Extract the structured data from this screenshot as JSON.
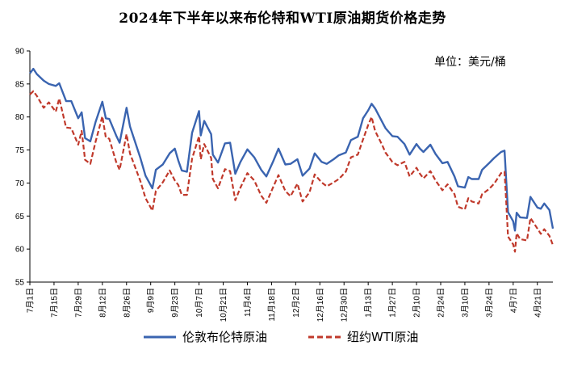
{
  "chart_data": {
    "type": "line",
    "title": "2024年下半年以来布伦特和WTI原油期货价格走势",
    "unit_note": "单位：美元/桶",
    "ylim": [
      55,
      90
    ],
    "y_ticks": [
      "55",
      "60",
      "65",
      "70",
      "75",
      "80",
      "85",
      "90"
    ],
    "x_tick_labels": [
      "7月1日",
      "7月15日",
      "7月29日",
      "8月12日",
      "8月26日",
      "9月9日",
      "9月23日",
      "10月7日",
      "10月21日",
      "11月4日",
      "11月18日",
      "12月2日",
      "12月16日",
      "12月30日",
      "1月13日",
      "1月27日",
      "2月10日",
      "2月24日",
      "3月10日",
      "3月24日",
      "4月7日",
      "4月21日"
    ],
    "x_range": [
      "2024-07-01",
      "2025-04-30"
    ],
    "grid": false,
    "legend_position": "bottom",
    "series": [
      {
        "name": "伦敦布伦特原油",
        "color": "#3a64b0",
        "style": "solid",
        "points": [
          [
            "2024-07-01",
            86.6
          ],
          [
            "2024-07-03",
            87.3
          ],
          [
            "2024-07-05",
            86.5
          ],
          [
            "2024-07-09",
            85.5
          ],
          [
            "2024-07-12",
            85.0
          ],
          [
            "2024-07-16",
            84.7
          ],
          [
            "2024-07-18",
            85.1
          ],
          [
            "2024-07-22",
            82.4
          ],
          [
            "2024-07-25",
            82.4
          ],
          [
            "2024-07-29",
            79.8
          ],
          [
            "2024-07-31",
            80.7
          ],
          [
            "2024-08-02",
            76.8
          ],
          [
            "2024-08-05",
            76.3
          ],
          [
            "2024-08-08",
            79.2
          ],
          [
            "2024-08-12",
            82.3
          ],
          [
            "2024-08-14",
            79.8
          ],
          [
            "2024-08-16",
            79.7
          ],
          [
            "2024-08-20",
            77.2
          ],
          [
            "2024-08-22",
            76.1
          ],
          [
            "2024-08-26",
            81.4
          ],
          [
            "2024-08-28",
            78.6
          ],
          [
            "2024-09-03",
            73.8
          ],
          [
            "2024-09-06",
            71.1
          ],
          [
            "2024-09-10",
            69.2
          ],
          [
            "2024-09-12",
            72.0
          ],
          [
            "2024-09-16",
            72.8
          ],
          [
            "2024-09-20",
            74.5
          ],
          [
            "2024-09-23",
            75.2
          ],
          [
            "2024-09-25",
            73.4
          ],
          [
            "2024-09-27",
            71.9
          ],
          [
            "2024-09-30",
            71.7
          ],
          [
            "2024-10-03",
            77.6
          ],
          [
            "2024-10-07",
            80.9
          ],
          [
            "2024-10-08",
            77.2
          ],
          [
            "2024-10-10",
            79.4
          ],
          [
            "2024-10-14",
            77.4
          ],
          [
            "2024-10-15",
            74.3
          ],
          [
            "2024-10-18",
            73.1
          ],
          [
            "2024-10-22",
            76.0
          ],
          [
            "2024-10-25",
            76.1
          ],
          [
            "2024-10-28",
            71.4
          ],
          [
            "2024-10-31",
            73.2
          ],
          [
            "2024-11-04",
            75.1
          ],
          [
            "2024-11-08",
            73.9
          ],
          [
            "2024-11-12",
            72.0
          ],
          [
            "2024-11-15",
            71.0
          ],
          [
            "2024-11-19",
            73.3
          ],
          [
            "2024-11-22",
            75.2
          ],
          [
            "2024-11-26",
            72.8
          ],
          [
            "2024-11-29",
            72.9
          ],
          [
            "2024-12-03",
            73.6
          ],
          [
            "2024-12-06",
            71.1
          ],
          [
            "2024-12-10",
            72.2
          ],
          [
            "2024-12-13",
            74.5
          ],
          [
            "2024-12-17",
            73.2
          ],
          [
            "2024-12-20",
            72.9
          ],
          [
            "2024-12-24",
            73.6
          ],
          [
            "2024-12-27",
            74.2
          ],
          [
            "2024-12-31",
            74.6
          ],
          [
            "2025-01-03",
            76.5
          ],
          [
            "2025-01-07",
            77.0
          ],
          [
            "2025-01-10",
            79.8
          ],
          [
            "2025-01-13",
            81.0
          ],
          [
            "2025-01-15",
            82.0
          ],
          [
            "2025-01-17",
            81.3
          ],
          [
            "2025-01-21",
            79.3
          ],
          [
            "2025-01-23",
            78.3
          ],
          [
            "2025-01-27",
            77.1
          ],
          [
            "2025-01-30",
            77.0
          ],
          [
            "2025-02-03",
            75.9
          ],
          [
            "2025-02-06",
            74.3
          ],
          [
            "2025-02-10",
            75.9
          ],
          [
            "2025-02-12",
            75.2
          ],
          [
            "2025-02-14",
            74.7
          ],
          [
            "2025-02-18",
            75.8
          ],
          [
            "2025-02-21",
            74.4
          ],
          [
            "2025-02-25",
            73.0
          ],
          [
            "2025-02-28",
            73.2
          ],
          [
            "2025-03-04",
            71.0
          ],
          [
            "2025-03-06",
            69.5
          ],
          [
            "2025-03-10",
            69.3
          ],
          [
            "2025-03-12",
            70.9
          ],
          [
            "2025-03-14",
            70.6
          ],
          [
            "2025-03-18",
            70.6
          ],
          [
            "2025-03-20",
            72.0
          ],
          [
            "2025-03-24",
            73.0
          ],
          [
            "2025-03-27",
            73.8
          ],
          [
            "2025-03-31",
            74.7
          ],
          [
            "2025-04-02",
            74.9
          ],
          [
            "2025-04-03",
            70.1
          ],
          [
            "2025-04-04",
            65.6
          ],
          [
            "2025-04-07",
            64.2
          ],
          [
            "2025-04-08",
            62.8
          ],
          [
            "2025-04-09",
            65.5
          ],
          [
            "2025-04-11",
            64.8
          ],
          [
            "2025-04-15",
            64.7
          ],
          [
            "2025-04-17",
            67.9
          ],
          [
            "2025-04-21",
            66.3
          ],
          [
            "2025-04-23",
            66.1
          ],
          [
            "2025-04-25",
            66.9
          ],
          [
            "2025-04-28",
            65.9
          ],
          [
            "2025-04-30",
            63.1
          ]
        ]
      },
      {
        "name": "纽约WTI原油",
        "color": "#c0392b",
        "style": "dashed",
        "points": [
          [
            "2024-07-01",
            83.4
          ],
          [
            "2024-07-03",
            83.9
          ],
          [
            "2024-07-05",
            83.2
          ],
          [
            "2024-07-09",
            81.4
          ],
          [
            "2024-07-12",
            82.2
          ],
          [
            "2024-07-16",
            80.8
          ],
          [
            "2024-07-18",
            82.8
          ],
          [
            "2024-07-22",
            78.4
          ],
          [
            "2024-07-25",
            78.3
          ],
          [
            "2024-07-29",
            75.8
          ],
          [
            "2024-07-31",
            77.9
          ],
          [
            "2024-08-02",
            73.5
          ],
          [
            "2024-08-05",
            72.9
          ],
          [
            "2024-08-08",
            76.2
          ],
          [
            "2024-08-12",
            80.1
          ],
          [
            "2024-08-14",
            76.9
          ],
          [
            "2024-08-16",
            76.7
          ],
          [
            "2024-08-20",
            73.2
          ],
          [
            "2024-08-22",
            72.0
          ],
          [
            "2024-08-26",
            77.4
          ],
          [
            "2024-08-28",
            74.5
          ],
          [
            "2024-09-03",
            70.3
          ],
          [
            "2024-09-06",
            67.7
          ],
          [
            "2024-09-10",
            65.8
          ],
          [
            "2024-09-12",
            68.8
          ],
          [
            "2024-09-16",
            70.1
          ],
          [
            "2024-09-20",
            71.9
          ],
          [
            "2024-09-23",
            70.4
          ],
          [
            "2024-09-25",
            69.7
          ],
          [
            "2024-09-27",
            68.2
          ],
          [
            "2024-09-30",
            68.2
          ],
          [
            "2024-10-03",
            73.7
          ],
          [
            "2024-10-07",
            77.1
          ],
          [
            "2024-10-08",
            73.6
          ],
          [
            "2024-10-10",
            75.9
          ],
          [
            "2024-10-14",
            73.8
          ],
          [
            "2024-10-15",
            70.6
          ],
          [
            "2024-10-18",
            69.2
          ],
          [
            "2024-10-22",
            72.1
          ],
          [
            "2024-10-25",
            71.8
          ],
          [
            "2024-10-28",
            67.4
          ],
          [
            "2024-10-31",
            69.3
          ],
          [
            "2024-11-04",
            71.5
          ],
          [
            "2024-11-08",
            70.4
          ],
          [
            "2024-11-12",
            68.1
          ],
          [
            "2024-11-15",
            67.0
          ],
          [
            "2024-11-19",
            69.4
          ],
          [
            "2024-11-22",
            71.2
          ],
          [
            "2024-11-26",
            68.8
          ],
          [
            "2024-11-29",
            68.0
          ],
          [
            "2024-12-03",
            69.9
          ],
          [
            "2024-12-06",
            67.2
          ],
          [
            "2024-12-10",
            68.6
          ],
          [
            "2024-12-13",
            71.3
          ],
          [
            "2024-12-17",
            70.1
          ],
          [
            "2024-12-20",
            69.5
          ],
          [
            "2024-12-24",
            70.1
          ],
          [
            "2024-12-27",
            70.6
          ],
          [
            "2024-12-31",
            71.7
          ],
          [
            "2025-01-03",
            73.9
          ],
          [
            "2025-01-07",
            74.3
          ],
          [
            "2025-01-10",
            76.6
          ],
          [
            "2025-01-13",
            78.8
          ],
          [
            "2025-01-15",
            80.0
          ],
          [
            "2025-01-17",
            77.9
          ],
          [
            "2025-01-21",
            75.8
          ],
          [
            "2025-01-23",
            74.6
          ],
          [
            "2025-01-27",
            73.2
          ],
          [
            "2025-01-30",
            72.7
          ],
          [
            "2025-02-03",
            73.2
          ],
          [
            "2025-02-06",
            71.0
          ],
          [
            "2025-02-10",
            72.3
          ],
          [
            "2025-02-12",
            71.4
          ],
          [
            "2025-02-14",
            70.7
          ],
          [
            "2025-02-18",
            71.8
          ],
          [
            "2025-02-21",
            70.4
          ],
          [
            "2025-02-25",
            68.9
          ],
          [
            "2025-02-28",
            69.8
          ],
          [
            "2025-03-04",
            68.3
          ],
          [
            "2025-03-06",
            66.4
          ],
          [
            "2025-03-10",
            66.0
          ],
          [
            "2025-03-12",
            67.7
          ],
          [
            "2025-03-14",
            67.2
          ],
          [
            "2025-03-18",
            66.9
          ],
          [
            "2025-03-20",
            68.3
          ],
          [
            "2025-03-24",
            69.1
          ],
          [
            "2025-03-27",
            69.9
          ],
          [
            "2025-03-31",
            71.5
          ],
          [
            "2025-04-02",
            71.7
          ],
          [
            "2025-04-03",
            66.9
          ],
          [
            "2025-04-04",
            61.9
          ],
          [
            "2025-04-07",
            60.7
          ],
          [
            "2025-04-08",
            59.6
          ],
          [
            "2025-04-09",
            62.4
          ],
          [
            "2025-04-11",
            61.5
          ],
          [
            "2025-04-15",
            61.3
          ],
          [
            "2025-04-17",
            64.7
          ],
          [
            "2025-04-21",
            63.1
          ],
          [
            "2025-04-23",
            62.3
          ],
          [
            "2025-04-25",
            63.0
          ],
          [
            "2025-04-28",
            62.0
          ],
          [
            "2025-04-30",
            60.6
          ]
        ]
      }
    ]
  }
}
